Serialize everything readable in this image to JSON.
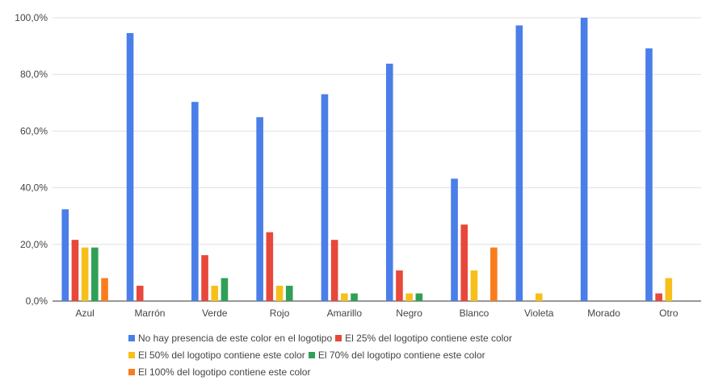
{
  "chart_data": {
    "type": "bar",
    "title": "",
    "xlabel": "",
    "ylabel": "",
    "ylim": [
      0,
      100
    ],
    "yticks": [
      "0,0%",
      "20,0%",
      "40,0%",
      "60,0%",
      "80,0%",
      "100,0%"
    ],
    "ytick_values": [
      0,
      20,
      40,
      60,
      80,
      100
    ],
    "grid": true,
    "legend_position": "bottom",
    "categories": [
      "Azul",
      "Marrón",
      "Verde",
      "Rojo",
      "Amarillo",
      "Negro",
      "Blanco",
      "Violeta",
      "Morado",
      "Otro"
    ],
    "series": [
      {
        "name": "No hay presencia de este color en el logotipo",
        "color": "#4a7ee8",
        "values": [
          32.4,
          94.6,
          70.3,
          64.9,
          73.0,
          83.8,
          43.2,
          97.3,
          100.0,
          89.2
        ]
      },
      {
        "name": "El 25% del logotipo contiene este color",
        "color": "#e8473b",
        "values": [
          21.6,
          5.4,
          16.2,
          24.3,
          21.6,
          10.8,
          27.0,
          0,
          0,
          2.7
        ]
      },
      {
        "name": "El 50% del logotipo contiene este color",
        "color": "#f6bf1a",
        "values": [
          18.9,
          0,
          5.4,
          5.4,
          2.7,
          2.7,
          10.8,
          2.7,
          0,
          8.1
        ]
      },
      {
        "name": "El 70% del logotipo contiene este color",
        "color": "#2fa056",
        "values": [
          18.9,
          0,
          8.1,
          5.4,
          2.7,
          2.7,
          0,
          0,
          0,
          0
        ]
      },
      {
        "name": "El 100% del logotipo contiene este color",
        "color": "#fa7d1c",
        "values": [
          8.1,
          0,
          0,
          0,
          0,
          0,
          18.9,
          0,
          0,
          0
        ]
      }
    ]
  }
}
